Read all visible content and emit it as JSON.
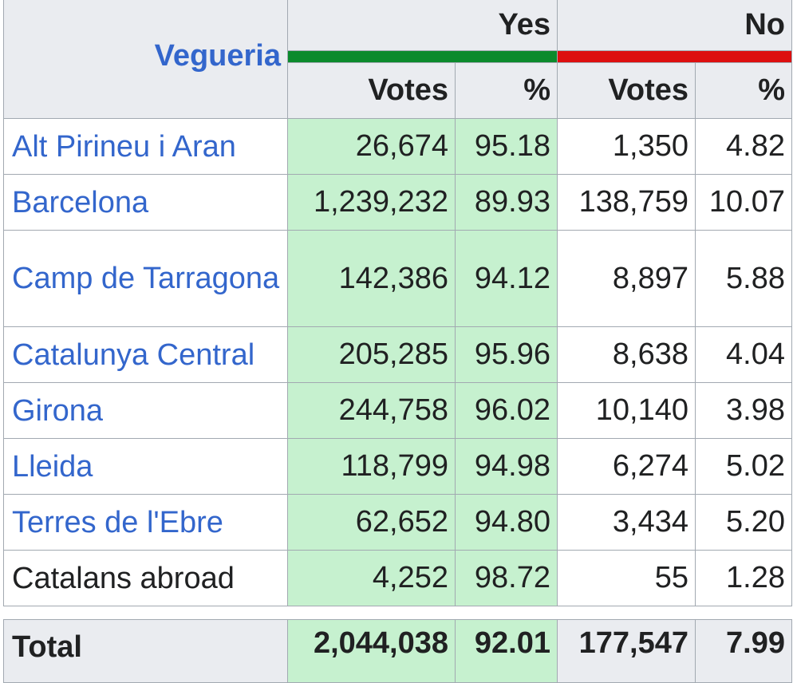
{
  "table": {
    "header": {
      "region_label": "Vegueria",
      "yes_label": "Yes",
      "no_label": "No",
      "votes_label": "Votes",
      "pct_label": "%"
    },
    "colors": {
      "yes_bar": "#0b8a2c",
      "no_bar": "#dd0f0f",
      "yes_cell": "#c6f1cf",
      "link": "#3366cc"
    },
    "rows": [
      {
        "name": "Alt Pirineu i Aran",
        "yes_votes": "26,674",
        "yes_pct": "95.18",
        "no_votes": "1,350",
        "no_pct": "4.82"
      },
      {
        "name": "Barcelona",
        "yes_votes": "1,239,232",
        "yes_pct": "89.93",
        "no_votes": "138,759",
        "no_pct": "10.07"
      },
      {
        "name": "Camp de Tarragona",
        "yes_votes": "142,386",
        "yes_pct": "94.12",
        "no_votes": "8,897",
        "no_pct": "5.88"
      },
      {
        "name": "Catalunya Central",
        "yes_votes": "205,285",
        "yes_pct": "95.96",
        "no_votes": "8,638",
        "no_pct": "4.04"
      },
      {
        "name": "Girona",
        "yes_votes": "244,758",
        "yes_pct": "96.02",
        "no_votes": "10,140",
        "no_pct": "3.98"
      },
      {
        "name": "Lleida",
        "yes_votes": "118,799",
        "yes_pct": "94.98",
        "no_votes": "6,274",
        "no_pct": "5.02"
      },
      {
        "name": "Terres de l'Ebre",
        "yes_votes": "62,652",
        "yes_pct": "94.80",
        "no_votes": "3,434",
        "no_pct": "5.20"
      },
      {
        "name": "Catalans abroad",
        "yes_votes": "4,252",
        "yes_pct": "98.72",
        "no_votes": "55",
        "no_pct": "1.28"
      }
    ],
    "total": {
      "name": "Total",
      "yes_votes": "2,044,038",
      "yes_pct": "92.01",
      "no_votes": "177,547",
      "no_pct": "7.99"
    }
  }
}
